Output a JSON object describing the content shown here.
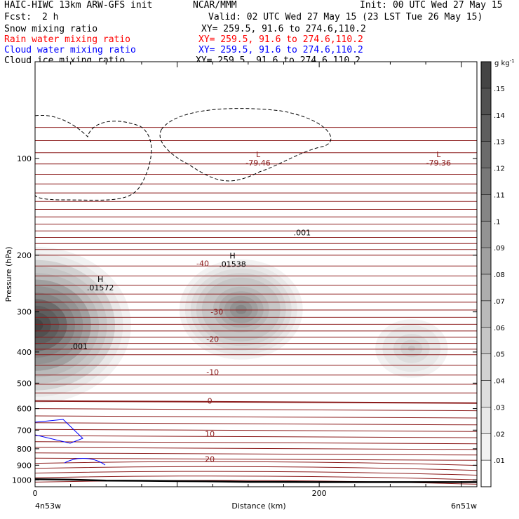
{
  "header": {
    "title_left": "HAIC-HIWC 13km ARW-GFS init",
    "title_center": "NCAR/MMM",
    "init": "Init: 00 UTC Wed 27 May 15",
    "fcst_label": "Fcst:",
    "fcst_value": "2 h",
    "valid": "Valid: 02 UTC Wed 27 May 15 (23 LST Tue 26 May 15)"
  },
  "fields": [
    {
      "name": "Snow mixing ratio",
      "xy": "XY= 259.5, 91.6 to 274.6,110.2",
      "color": "#000000"
    },
    {
      "name": "Rain water mixing ratio",
      "xy": "XY= 259.5, 91.6 to 274.6,110.2",
      "color": "#ff0000"
    },
    {
      "name": "Cloud water mixing ratio",
      "xy": "XY= 259.5, 91.6 to 274.6,110.2",
      "color": "#0000ff"
    },
    {
      "name": "Cloud ice mixing ratio",
      "xy": "XY= 259.5, 91.6 to 274.6,110.2",
      "color": "#000000"
    }
  ],
  "chart_data": {
    "type": "heatmap",
    "xlabel": "Distance (km)",
    "ylabel": "Pressure (hPa)",
    "xlim": [
      0,
      311
    ],
    "ylim": [
      1050,
      50
    ],
    "y_scale": "log-pressure",
    "x_ticks": [
      "0",
      "200"
    ],
    "y_ticks": [
      "100",
      "200",
      "300",
      "400",
      "500",
      "600",
      "700",
      "800",
      "900",
      "1000"
    ],
    "x_end_labels": {
      "left": "4n53w",
      "right": "6n51w"
    },
    "colorbar": {
      "unit": "g kg",
      "unit_exp": "-1",
      "levels": [
        ".01",
        ".02",
        ".03",
        ".04",
        ".05",
        ".06",
        ".07",
        ".08",
        ".09",
        ".1",
        ".11",
        ".12",
        ".13",
        ".14",
        ".15"
      ],
      "colors": [
        "#ffffff",
        "#f2f2f2",
        "#e8e8e8",
        "#dddddd",
        "#d2d2d2",
        "#c6c6c6",
        "#bababa",
        "#adadad",
        "#a0a0a0",
        "#939393",
        "#858585",
        "#787878",
        "#6b6b6b",
        "#5e5e5e",
        "#515151",
        "#444444"
      ]
    },
    "snow_blobs": [
      {
        "x": 0,
        "p": 330,
        "max": 0.16
      },
      {
        "x": 145,
        "p": 295,
        "max": 0.1
      },
      {
        "x": 265,
        "p": 390,
        "max": 0.05
      }
    ],
    "temperature_contours_C": [
      -40,
      -30,
      -20,
      -10,
      0,
      10,
      20
    ],
    "temperature_labels": [
      {
        "text": "-40",
        "x": 118,
        "p": 212
      },
      {
        "text": "-30",
        "x": 128,
        "p": 300
      },
      {
        "text": "-20",
        "x": 125,
        "p": 365
      },
      {
        "text": "-10",
        "x": 125,
        "p": 462
      },
      {
        "text": "0",
        "x": 123,
        "p": 567
      },
      {
        "text": "10",
        "x": 123,
        "p": 718
      },
      {
        "text": "20",
        "x": 123,
        "p": 860
      }
    ],
    "extrema_labels": [
      {
        "letter": "L",
        "value": "-79.46",
        "x": 157,
        "p": 103,
        "color": "#8b1a1a"
      },
      {
        "letter": "L",
        "value": "-79.36",
        "x": 284,
        "p": 103,
        "color": "#8b1a1a"
      },
      {
        "letter": "H",
        "value": ".01572",
        "x": 46,
        "p": 252,
        "color": "#000000"
      },
      {
        "letter": "H",
        "value": ".01538",
        "x": 139,
        "p": 213,
        "color": "#000000"
      }
    ],
    "cloud_ice_labels": [
      {
        "text": ".001",
        "x": 31,
        "p": 383
      },
      {
        "text": ".001",
        "x": 188,
        "p": 170
      }
    ]
  }
}
